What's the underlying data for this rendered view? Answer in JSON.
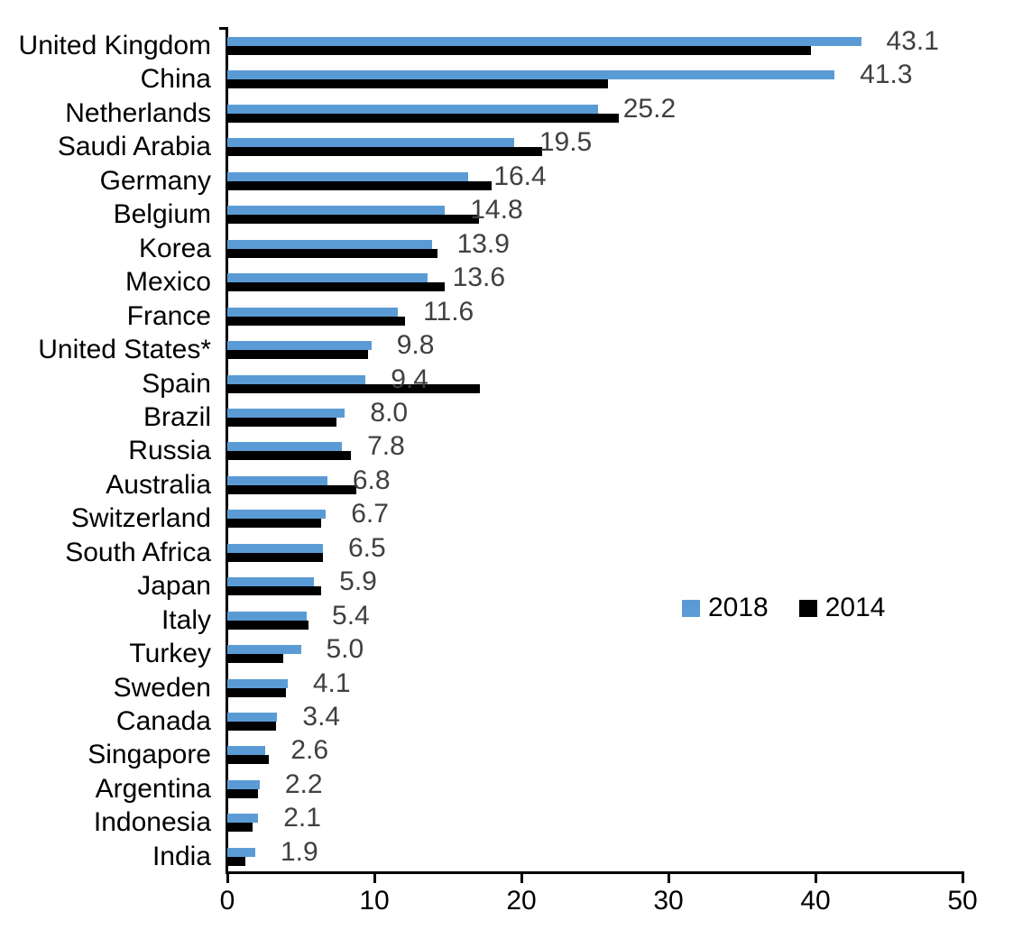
{
  "chart_data": {
    "type": "bar",
    "orientation": "horizontal",
    "title": "",
    "xlabel": "",
    "ylabel": "",
    "xlim": [
      0,
      50
    ],
    "x_ticks": [
      0,
      10,
      20,
      30,
      40,
      50
    ],
    "x_tick_labels": [
      "0",
      "10",
      "20",
      "30",
      "40",
      "50"
    ],
    "grid": false,
    "categories": [
      "United Kingdom",
      "China",
      "Netherlands",
      "Saudi Arabia",
      "Germany",
      "Belgium",
      "Korea",
      "Mexico",
      "France",
      "United States*",
      "Spain",
      "Brazil",
      "Russia",
      "Australia",
      "Switzerland",
      "South Africa",
      "Japan",
      "Italy",
      "Turkey",
      "Sweden",
      "Canada",
      "Singapore",
      "Argentina",
      "Indonesia",
      "India"
    ],
    "series": [
      {
        "name": "2018",
        "color": "#5B9BD5",
        "values": [
          43.1,
          41.3,
          25.2,
          19.5,
          16.4,
          14.8,
          13.9,
          13.6,
          11.6,
          9.8,
          9.4,
          8.0,
          7.8,
          6.8,
          6.7,
          6.5,
          5.9,
          5.4,
          5.0,
          4.1,
          3.4,
          2.6,
          2.2,
          2.1,
          1.9
        ]
      },
      {
        "name": "2014",
        "color": "#000000",
        "values": [
          39.7,
          25.9,
          26.6,
          21.4,
          18.0,
          17.1,
          14.3,
          14.8,
          12.1,
          9.6,
          17.2,
          7.4,
          8.4,
          8.8,
          6.4,
          6.5,
          6.4,
          5.5,
          3.8,
          4.0,
          3.3,
          2.8,
          2.1,
          1.7,
          1.2
        ]
      }
    ],
    "value_labels": [
      "43.1",
      "41.3",
      "25.2",
      "19.5",
      "16.4",
      "14.8",
      "13.9",
      "13.6",
      "11.6",
      "9.8",
      "9.4",
      "8.0",
      "7.8",
      "6.8",
      "6.7",
      "6.5",
      "5.9",
      "5.4",
      "5.0",
      "4.1",
      "3.4",
      "2.6",
      "2.2",
      "2.1",
      "1.9"
    ],
    "value_label_color": "#404040",
    "axis_color": "#000000",
    "legend": {
      "position": "middle-right",
      "entries": [
        {
          "label": "2018",
          "color": "#5B9BD5"
        },
        {
          "label": "2014",
          "color": "#000000"
        }
      ]
    }
  }
}
